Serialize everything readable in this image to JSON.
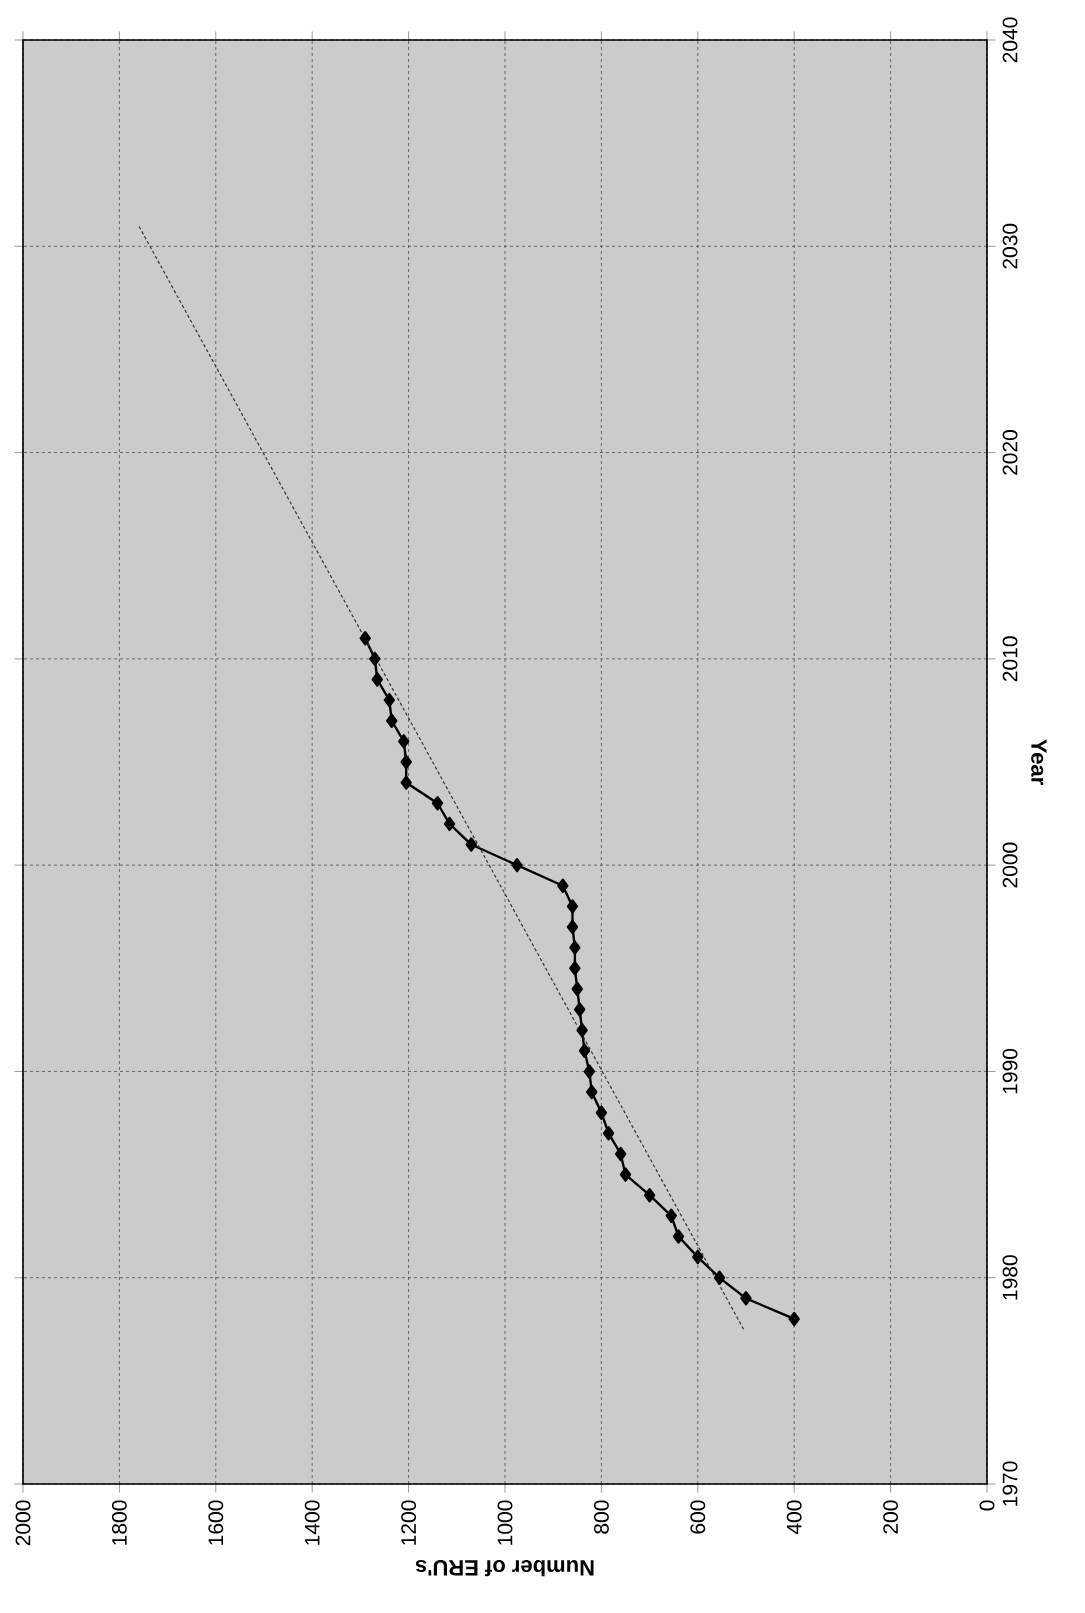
{
  "chart_data": {
    "type": "line",
    "xlabel": "Number of ERU's",
    "ylabel": "Year",
    "xlim": [
      2000,
      0
    ],
    "ylim": [
      1970,
      2040
    ],
    "xticks": [
      0,
      200,
      400,
      600,
      800,
      1000,
      1200,
      1400,
      1600,
      1800,
      2000
    ],
    "yticks": [
      1970,
      1980,
      1990,
      2000,
      2010,
      2020,
      2030,
      2040
    ],
    "grid": true,
    "series": [
      {
        "color": "#000000",
        "marker": "diamond",
        "line_style": "solid",
        "x": [
          400,
          500,
          555,
          600,
          640,
          655,
          700,
          750,
          760,
          785,
          800,
          820,
          825,
          835,
          840,
          845,
          850,
          855,
          855,
          860,
          860,
          880,
          975,
          1070,
          1115,
          1140,
          1205,
          1205,
          1210,
          1235,
          1240,
          1265,
          1270,
          1290
        ],
        "values": [
          1978,
          1979,
          1980,
          1981,
          1982,
          1983,
          1984,
          1985,
          1986,
          1987,
          1988,
          1989,
          1990,
          1991,
          1992,
          1993,
          1994,
          1995,
          1996,
          1997,
          1998,
          1999,
          2000,
          2001,
          2002,
          2003,
          2004,
          2005,
          2006,
          2007,
          2008,
          2009,
          2010,
          2011
        ]
      },
      {
        "color": "#333333",
        "marker": "none",
        "line_style": "dotted",
        "x": [
          505,
          1760
        ],
        "values": [
          1977.5,
          2031
        ]
      }
    ]
  }
}
